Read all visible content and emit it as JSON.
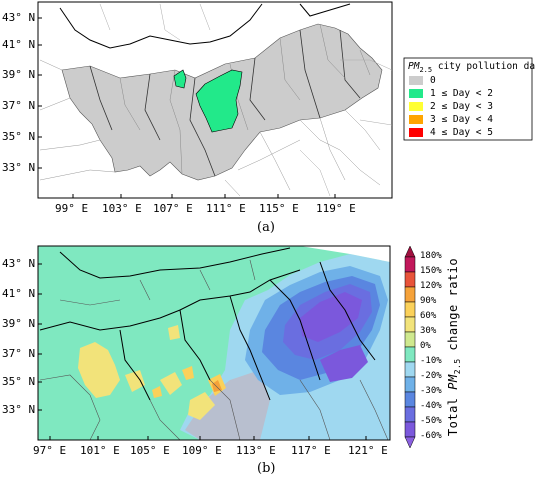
{
  "top_map": {
    "lat_labels": [
      "43° N",
      "41° N",
      "39° N",
      "37° N",
      "35° N",
      "33° N"
    ],
    "lon_labels": [
      "99° E",
      "103° E",
      "107° E",
      "111° E",
      "115° E",
      "119° E"
    ],
    "legend": {
      "title_prefix": "PM",
      "title_sub": "2.5",
      "title_suffix": " city pollution day",
      "items": [
        {
          "label": "0",
          "color": "#cccccc"
        },
        {
          "label": "1 ≤ Day < 2",
          "color": "#22e98a"
        },
        {
          "label": "2 ≤ Day < 3",
          "color": "#ffff33"
        },
        {
          "label": "3 ≤ Day < 4",
          "color": "#ffa500"
        },
        {
          "label": "4 ≤ Day < 5",
          "color": "#ff0000"
        }
      ]
    },
    "caption": "(a)"
  },
  "bottom_map": {
    "lat_labels": [
      "43° N",
      "41° N",
      "39° N",
      "37° N",
      "35° N",
      "33° N"
    ],
    "lon_labels": [
      "97° E",
      "101° E",
      "105° E",
      "109° E",
      "113° E",
      "117° E",
      "121° E"
    ],
    "colorbar": {
      "ticks": [
        "180%",
        "150%",
        "120%",
        "90%",
        "60%",
        "30%",
        "0%",
        "-10%",
        "-20%",
        "-30%",
        "-40%",
        "-50%",
        "-60%"
      ],
      "colors": [
        "#c2185b",
        "#e8533a",
        "#f5a23a",
        "#fbd15a",
        "#f2e37a",
        "#cfe98f",
        "#7fe8c0",
        "#9fd8f0",
        "#6fb1e8",
        "#5a86e0",
        "#6a6ee0",
        "#7b58dc"
      ],
      "title_prefix": "Total ",
      "title_pm": "PM",
      "title_sub": "2.5",
      "title_suffix": " change ratio"
    },
    "caption": "(b)"
  }
}
